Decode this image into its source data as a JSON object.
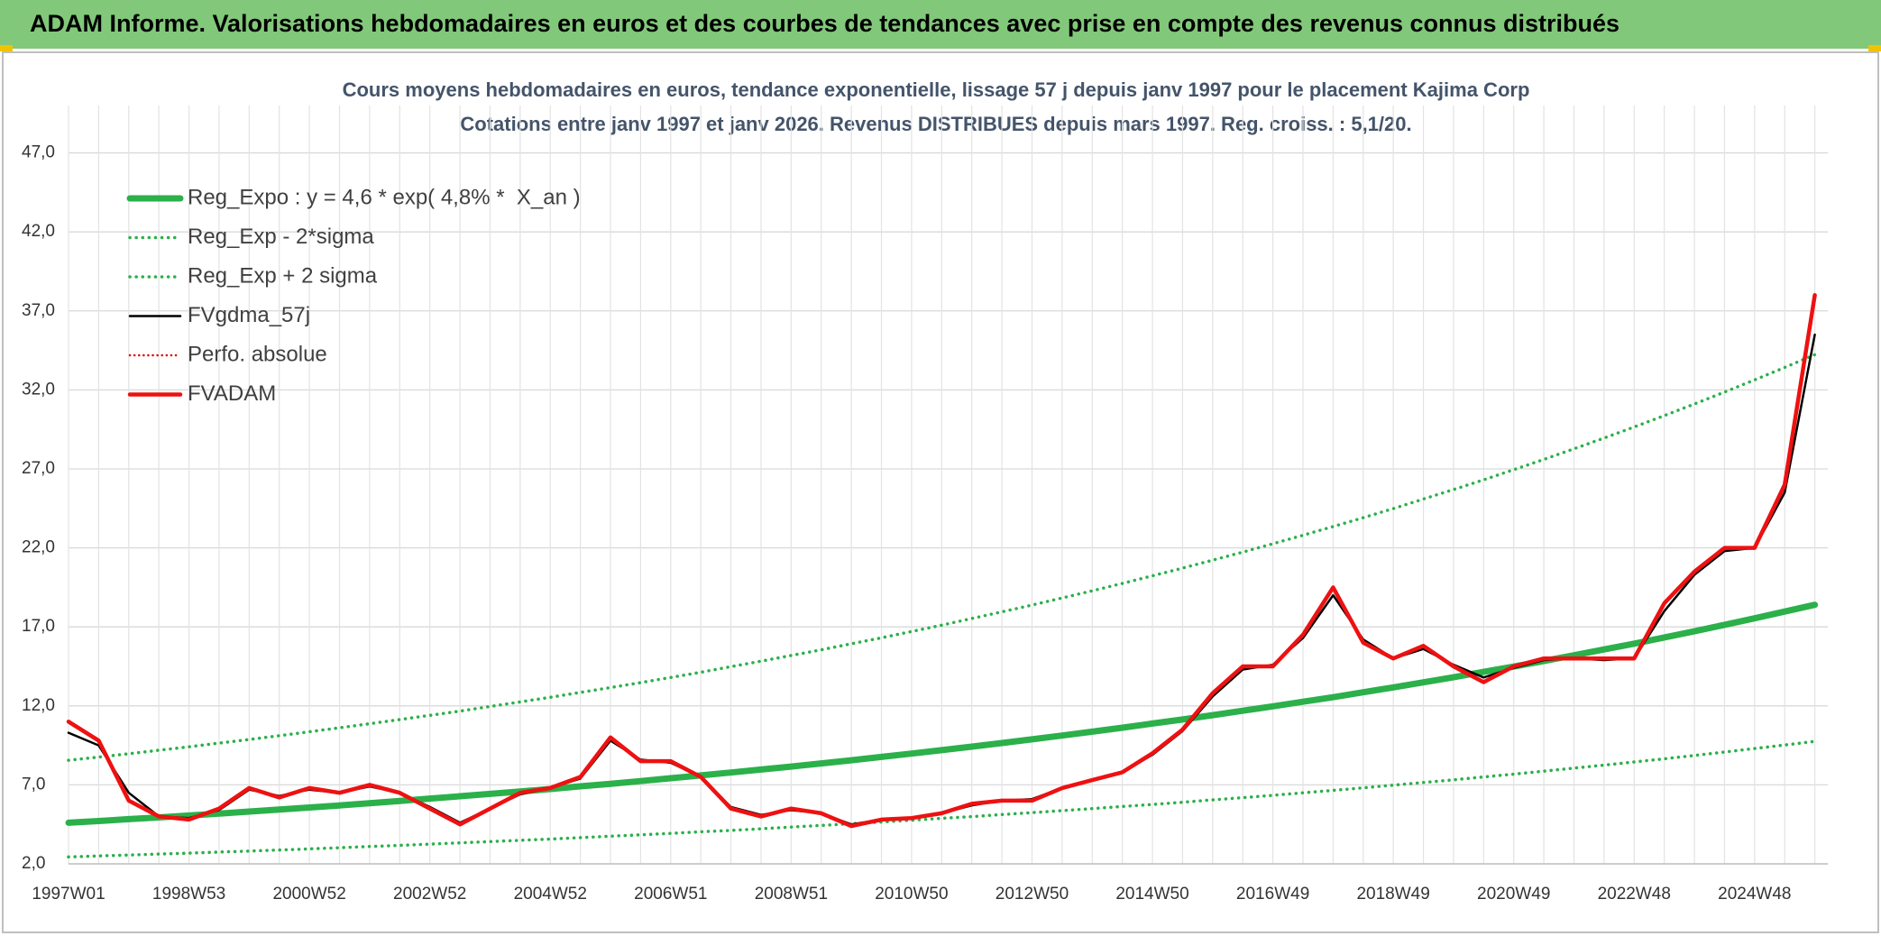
{
  "chart_data": {
    "type": "line",
    "title": "ADAM Informe. Valorisations hebdomadaires en euros et des courbes de tendances avec prise en compte des revenus connus distribués",
    "subtitle": [
      "Cours moyens hebdomadaires en euros, tendance exponentielle, lissage 57 j depuis janv 1997 pour le placement Kajima Corp",
      "Cotations entre janv 1997 et janv 2026. Revenus DISTRIBUES depuis mars 1997. Reg. croiss. : 5,1/20."
    ],
    "categories": [
      "1997W01",
      null,
      null,
      null,
      "1998W53",
      null,
      null,
      null,
      "2000W52",
      null,
      null,
      null,
      "2002W52",
      null,
      null,
      null,
      "2004W52",
      null,
      null,
      null,
      "2006W51",
      null,
      null,
      null,
      "2008W51",
      null,
      null,
      null,
      "2010W50",
      null,
      null,
      null,
      "2012W50",
      null,
      null,
      null,
      "2014W50",
      null,
      null,
      null,
      "2016W49",
      null,
      null,
      null,
      "2018W49",
      null,
      null,
      null,
      "2020W49",
      null,
      null,
      null,
      "2022W48",
      null,
      null,
      null,
      "2024W48",
      null,
      null
    ],
    "ylim": [
      2,
      50
    ],
    "yticks": [
      {
        "value": 2,
        "label": "2,0"
      },
      {
        "value": 7,
        "label": "7,0"
      },
      {
        "value": 12,
        "label": "12,0"
      },
      {
        "value": 17,
        "label": "17,0"
      },
      {
        "value": 22,
        "label": "22,0"
      },
      {
        "value": 27,
        "label": "27,0"
      },
      {
        "value": 32,
        "label": "32,0"
      },
      {
        "value": 37,
        "label": "37,0"
      },
      {
        "value": 42,
        "label": "42,0"
      },
      {
        "value": 47,
        "label": "47,0"
      }
    ],
    "grid": true,
    "legend": "upper left",
    "series": [
      {
        "name": "Reg_Expo : y = 4,6 * exp( 4,8% *  X_an )",
        "color": "#2bb04a",
        "style": "solid",
        "width": 7,
        "values": [
          4.6,
          4.71,
          4.83,
          4.94,
          5.06,
          5.18,
          5.31,
          5.44,
          5.57,
          5.7,
          5.84,
          5.98,
          6.13,
          6.28,
          6.43,
          6.58,
          6.74,
          6.91,
          7.07,
          7.24,
          7.42,
          7.6,
          7.78,
          7.97,
          8.16,
          8.36,
          8.56,
          8.77,
          8.98,
          9.2,
          9.42,
          9.65,
          9.88,
          10.12,
          10.37,
          10.62,
          10.88,
          11.14,
          11.41,
          11.69,
          11.97,
          12.26,
          12.55,
          12.86,
          13.17,
          13.49,
          13.81,
          14.15,
          14.49,
          14.84,
          15.2,
          15.57,
          15.94,
          16.33,
          16.72,
          17.13,
          17.54,
          17.97,
          18.4
        ]
      },
      {
        "name": "Reg_Exp - 2*sigma",
        "color": "#2bb04a",
        "style": "dotted",
        "width": 3.5,
        "values": [
          2.44,
          2.5,
          2.56,
          2.62,
          2.68,
          2.75,
          2.81,
          2.88,
          2.95,
          3.02,
          3.1,
          3.17,
          3.25,
          3.33,
          3.41,
          3.49,
          3.57,
          3.66,
          3.75,
          3.84,
          3.93,
          4.03,
          4.12,
          4.22,
          4.33,
          4.43,
          4.54,
          4.65,
          4.76,
          4.88,
          4.99,
          5.12,
          5.24,
          5.37,
          5.5,
          5.63,
          5.76,
          5.9,
          6.05,
          6.19,
          6.34,
          6.5,
          6.65,
          6.81,
          6.98,
          7.15,
          7.32,
          7.5,
          7.68,
          7.87,
          8.06,
          8.25,
          8.45,
          8.65,
          8.86,
          9.08,
          9.3,
          9.52,
          9.75
        ]
      },
      {
        "name": "Reg_Exp + 2 sigma",
        "color": "#2bb04a",
        "style": "dotted",
        "width": 3.5,
        "values": [
          8.56,
          8.76,
          8.97,
          9.19,
          9.41,
          9.64,
          9.87,
          10.11,
          10.36,
          10.61,
          10.87,
          11.13,
          11.4,
          11.67,
          11.96,
          12.25,
          12.54,
          12.85,
          13.16,
          13.47,
          13.8,
          14.13,
          14.48,
          14.83,
          15.19,
          15.55,
          15.93,
          16.31,
          16.71,
          17.11,
          17.53,
          17.95,
          18.38,
          18.83,
          19.28,
          19.75,
          20.23,
          20.72,
          21.22,
          21.73,
          22.26,
          22.8,
          23.35,
          23.91,
          24.49,
          25.09,
          25.69,
          26.31,
          26.95,
          27.6,
          28.27,
          28.95,
          29.65,
          30.37,
          31.11,
          31.86,
          32.63,
          33.42,
          34.23
        ]
      },
      {
        "name": "FVgdma_57j",
        "color": "#000000",
        "style": "solid",
        "width": 2.5,
        "values": [
          10.3,
          9.5,
          6.5,
          5.0,
          4.9,
          5.4,
          6.7,
          6.3,
          6.7,
          6.5,
          6.9,
          6.5,
          5.6,
          4.6,
          5.5,
          6.4,
          6.8,
          7.4,
          9.8,
          8.6,
          8.4,
          7.5,
          5.6,
          5.1,
          5.4,
          5.2,
          4.5,
          4.8,
          4.9,
          5.2,
          5.7,
          6.0,
          6.1,
          6.8,
          7.3,
          7.8,
          8.9,
          10.4,
          12.6,
          14.3,
          14.6,
          16.3,
          19.0,
          16.2,
          15.0,
          15.6,
          14.6,
          13.8,
          14.4,
          14.9,
          15.0,
          14.9,
          15.0,
          18.0,
          20.3,
          21.8,
          22.0,
          25.5,
          35.5
        ]
      },
      {
        "name": "Perfo. absolue",
        "color": "#e00000",
        "style": "dotted",
        "width": 2.5,
        "values": [
          null,
          null,
          null,
          null,
          null,
          null,
          null,
          null,
          null,
          null,
          null,
          null,
          null,
          null,
          null,
          null,
          null,
          null,
          null,
          null,
          null,
          null,
          null,
          null,
          null,
          null,
          null,
          null,
          null,
          null,
          null,
          null,
          null,
          null,
          null,
          null,
          null,
          null,
          null,
          null,
          null,
          null,
          null,
          null,
          null,
          null,
          null,
          null,
          null,
          null,
          null,
          null,
          null,
          null,
          null,
          null,
          null,
          null,
          null
        ]
      },
      {
        "name": "FVADAM",
        "color": "#ee1111",
        "style": "solid",
        "width": 4.5,
        "values": [
          11.0,
          9.8,
          6.0,
          5.0,
          4.8,
          5.5,
          6.8,
          6.2,
          6.8,
          6.5,
          7.0,
          6.5,
          5.5,
          4.5,
          5.5,
          6.5,
          6.8,
          7.5,
          10.0,
          8.5,
          8.5,
          7.5,
          5.5,
          5.0,
          5.5,
          5.2,
          4.4,
          4.8,
          4.9,
          5.2,
          5.8,
          6.0,
          6.0,
          6.8,
          7.3,
          7.8,
          9.0,
          10.5,
          12.8,
          14.5,
          14.5,
          16.5,
          19.5,
          16.0,
          15.0,
          15.8,
          14.5,
          13.5,
          14.5,
          15.0,
          15.0,
          15.0,
          15.0,
          18.5,
          20.5,
          22.0,
          22.0,
          26.0,
          38.0
        ]
      }
    ]
  }
}
